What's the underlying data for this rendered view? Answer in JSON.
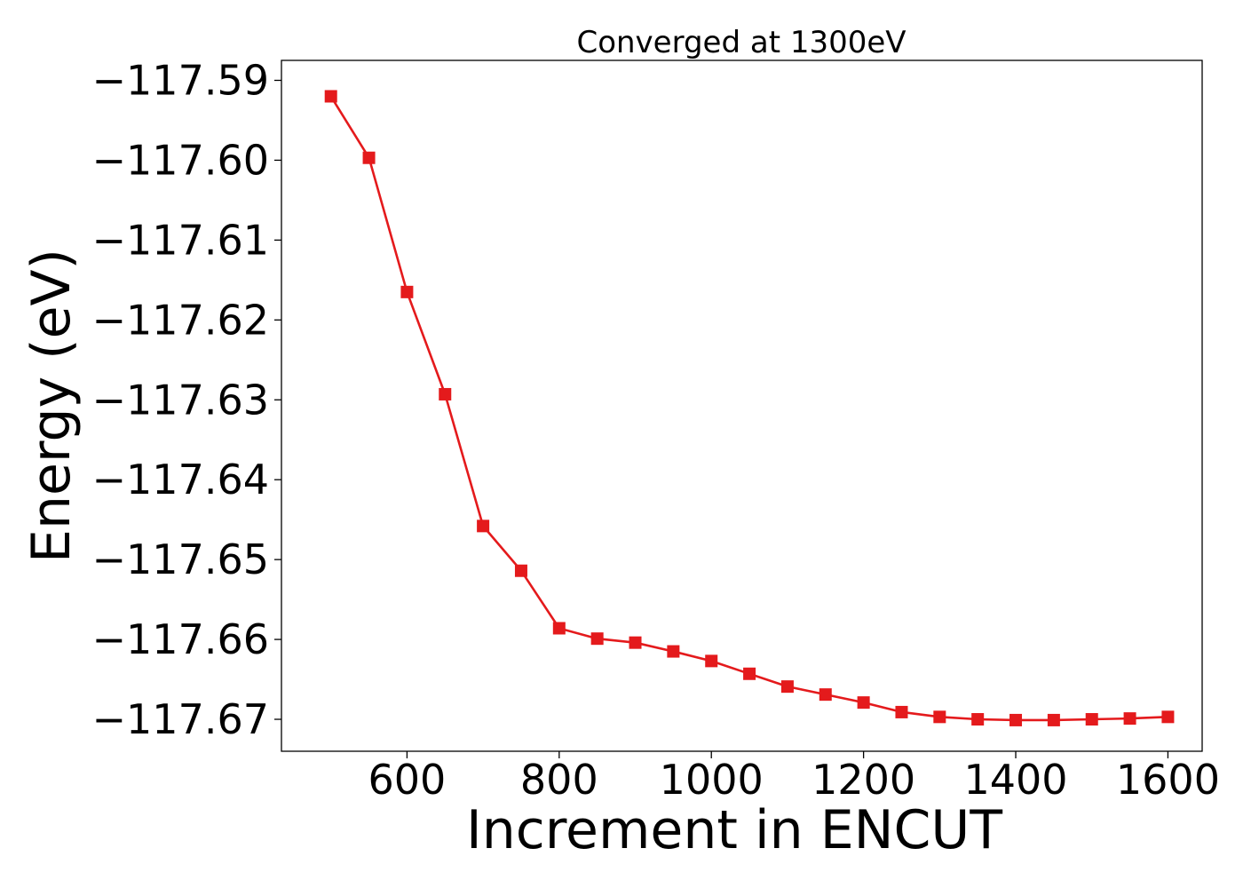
{
  "chart_data": {
    "type": "line",
    "title": "Converged at 1300eV",
    "xlabel": "Increment in ENCUT",
    "ylabel": "Energy (eV)",
    "xlim": [
      435,
      1645
    ],
    "ylim": [
      -117.674,
      -117.5875
    ],
    "xticks": [
      600,
      800,
      1000,
      1200,
      1400,
      1600
    ],
    "yticks": [
      -117.59,
      -117.6,
      -117.61,
      -117.62,
      -117.63,
      -117.64,
      -117.65,
      -117.66,
      -117.67
    ],
    "grid": false,
    "marker": "square",
    "series": [
      {
        "color": "#e41a1c",
        "x": [
          500,
          550,
          600,
          650,
          700,
          750,
          800,
          850,
          900,
          950,
          1000,
          1050,
          1100,
          1150,
          1200,
          1250,
          1300,
          1350,
          1400,
          1450,
          1500,
          1550,
          1600
        ],
        "y": [
          -117.592,
          -117.5997,
          -117.6165,
          -117.6293,
          -117.6458,
          -117.6514,
          -117.6586,
          -117.6599,
          -117.6604,
          -117.6615,
          -117.6627,
          -117.6643,
          -117.6659,
          -117.6669,
          -117.6679,
          -117.6691,
          -117.6697,
          -117.67,
          -117.6701,
          -117.6701,
          -117.67,
          -117.6699,
          -117.6697
        ]
      }
    ]
  }
}
